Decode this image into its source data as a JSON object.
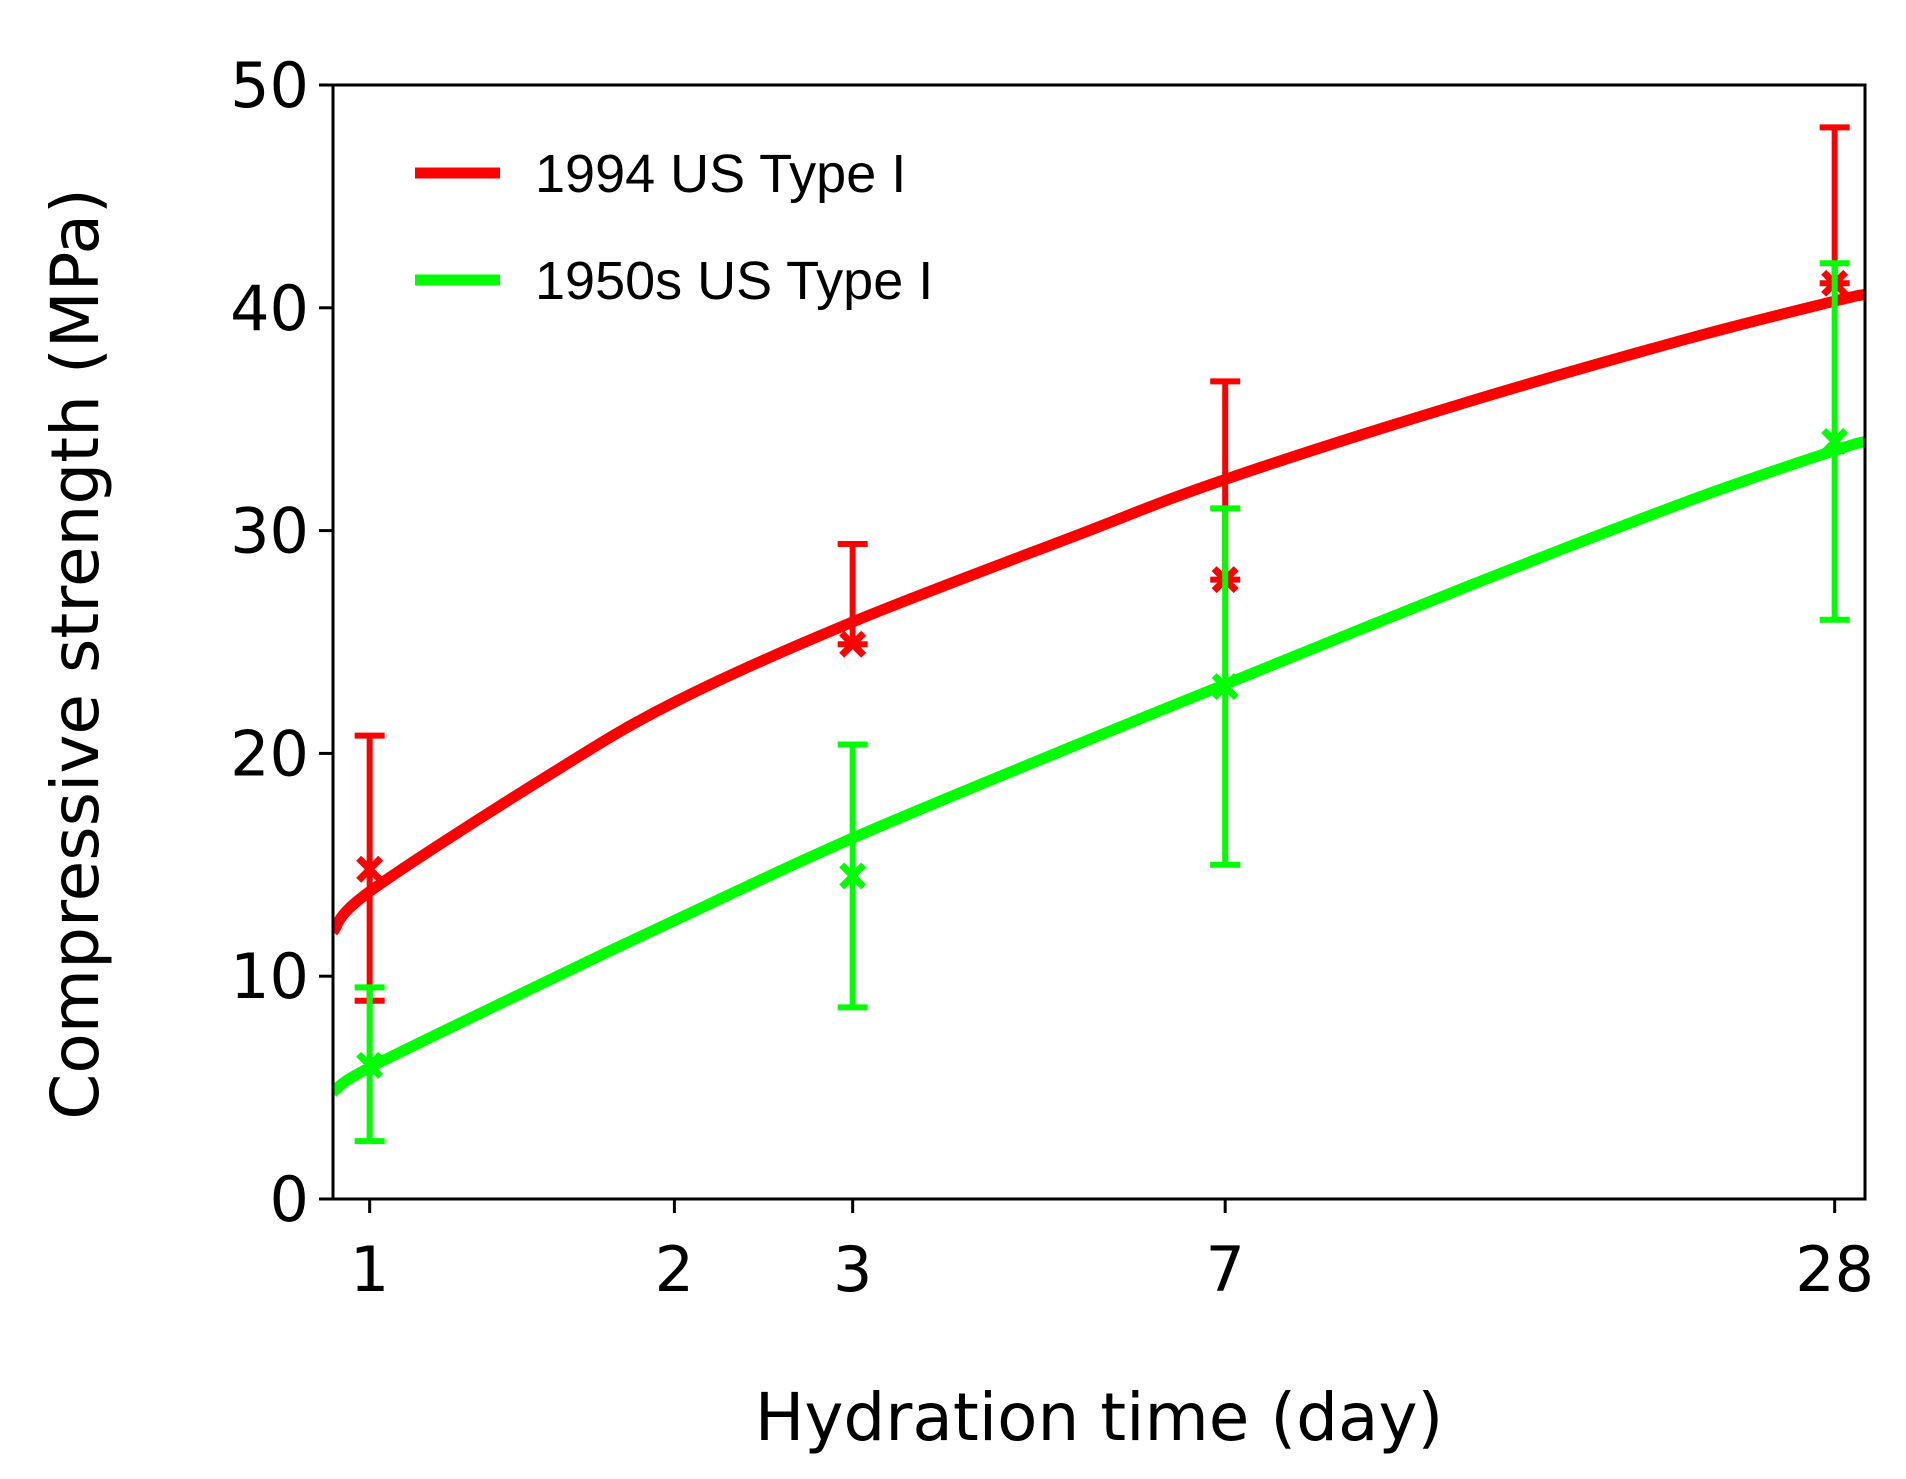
{
  "chart_data": {
    "type": "line",
    "title": "",
    "xlabel": "Hydration time (day)",
    "ylabel": "Compressive strength (MPa)",
    "x_scale": "log",
    "xlim": [
      0.92,
      30
    ],
    "ylim": [
      0,
      50
    ],
    "x_ticks": [
      1,
      2,
      3,
      7,
      28
    ],
    "x_tick_labels": [
      "1",
      "2",
      "3",
      "7",
      "28"
    ],
    "y_ticks": [
      0,
      10,
      20,
      30,
      40,
      50
    ],
    "y_tick_labels": [
      "0",
      "10",
      "20",
      "30",
      "40",
      "50"
    ],
    "grid": false,
    "legend_position": "top-left",
    "series": [
      {
        "name": "1994 US Type I",
        "color": "#ff0000",
        "fit_curve": {
          "x": [
            0.92,
            1,
            1.5,
            2,
            3,
            5,
            7,
            12,
            20,
            28,
            30
          ],
          "y": [
            12.0,
            13.8,
            19.0,
            22.3,
            25.9,
            29.8,
            32.3,
            35.7,
            38.6,
            40.3,
            40.6
          ]
        },
        "error_bars": [
          {
            "x": 1,
            "mean": 14.8,
            "lower": 8.9,
            "upper": 20.8
          },
          {
            "x": 3,
            "mean": 24.9,
            "lower": 24.9,
            "upper": 29.4
          },
          {
            "x": 7,
            "mean": 27.8,
            "lower": 27.8,
            "upper": 36.7
          },
          {
            "x": 28,
            "mean": 41.1,
            "lower": 41.1,
            "upper": 48.1
          }
        ]
      },
      {
        "name": "1950s US Type I",
        "color": "#00ff00",
        "fit_curve": {
          "x": [
            0.92,
            1,
            1.5,
            2,
            3,
            5,
            7,
            12,
            20,
            28,
            30
          ],
          "y": [
            4.8,
            5.9,
            9.8,
            12.5,
            16.2,
            20.4,
            23.1,
            27.4,
            31.3,
            33.6,
            34.0
          ]
        },
        "error_bars": [
          {
            "x": 1,
            "mean": 6.0,
            "lower": 2.6,
            "upper": 9.5
          },
          {
            "x": 3,
            "mean": 14.5,
            "lower": 8.6,
            "upper": 20.4
          },
          {
            "x": 7,
            "mean": 23.0,
            "lower": 15.0,
            "upper": 31.0
          },
          {
            "x": 28,
            "mean": 34.0,
            "lower": 26.0,
            "upper": 42.0
          }
        ]
      }
    ]
  }
}
